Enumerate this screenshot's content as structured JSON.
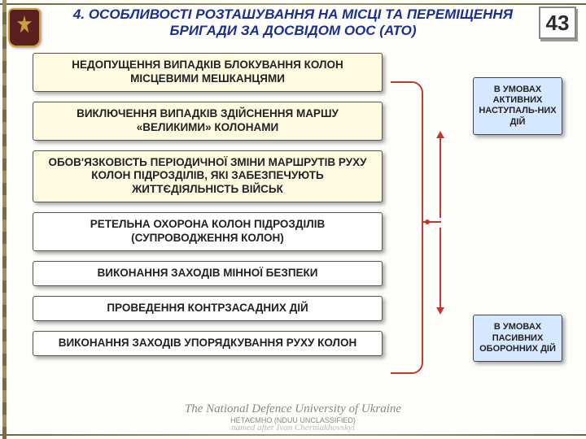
{
  "page_number": "43",
  "title": "4. ОСОБЛИВОСТІ РОЗТАШУВАННЯ НА МІСЦІ ТА ПЕРЕМІЩЕННЯ БРИГАДИ ЗА ДОСВІДОМ ООС (АТО)",
  "left_boxes": [
    {
      "text": "НЕДОПУЩЕННЯ ВИПАДКІВ БЛОКУВАННЯ КОЛОН МІСЦЕВИМИ МЕШКАНЦЯМИ",
      "bg": "yellow"
    },
    {
      "text": "ВИКЛЮЧЕННЯ ВИПАДКІВ ЗДІЙСНЕННЯ МАРШУ «ВЕЛИКИМИ» КОЛОНАМИ",
      "bg": "yellow"
    },
    {
      "text": "ОБОВ'ЯЗКОВІСТЬ ПЕРІОДИЧНОЇ ЗМІНИ МАРШРУТІВ РУХУ КОЛОН ПІДРОЗДІЛІВ, ЯКІ ЗАБЕЗПЕЧУЮТЬ ЖИТТЄДІЯЛЬНІСТЬ ВІЙСЬК",
      "bg": "yellow"
    },
    {
      "text": "РЕТЕЛЬНА ОХОРОНА КОЛОН ПІДРОЗДІЛІВ (СУПРОВОДЖЕННЯ КОЛОН)",
      "bg": "white"
    },
    {
      "text": "ВИКОНАННЯ ЗАХОДІВ МІННОЇ БЕЗПЕКИ",
      "bg": "white"
    },
    {
      "text": "ПРОВЕДЕННЯ КОНТРЗАСАДНИХ ДІЙ",
      "bg": "white"
    },
    {
      "text": "ВИКОНАННЯ ЗАХОДІВ УПОРЯДКУВАННЯ РУХУ КОЛОН",
      "bg": "white"
    }
  ],
  "side_top": "В УМОВАХ АКТИВНИХ НАСТУПАЛЬ-НИХ ДІЙ",
  "side_bottom": "В УМОВАХ ПАСИВНИХ ОБОРОННИХ ДІЙ",
  "footer_org": "The National Defence University of Ukraine",
  "footer_class": "НЕТАЄМНО (NDUU UNCLASSIFIED)",
  "footer_sig": "named after Ivan Cherniakhovskyi",
  "colors": {
    "title": "#1d2f8c",
    "box_yellow": "#fffbe0",
    "box_white": "#ffffff",
    "side_box": "#d6e8ff",
    "arrow": "#c0392b"
  }
}
